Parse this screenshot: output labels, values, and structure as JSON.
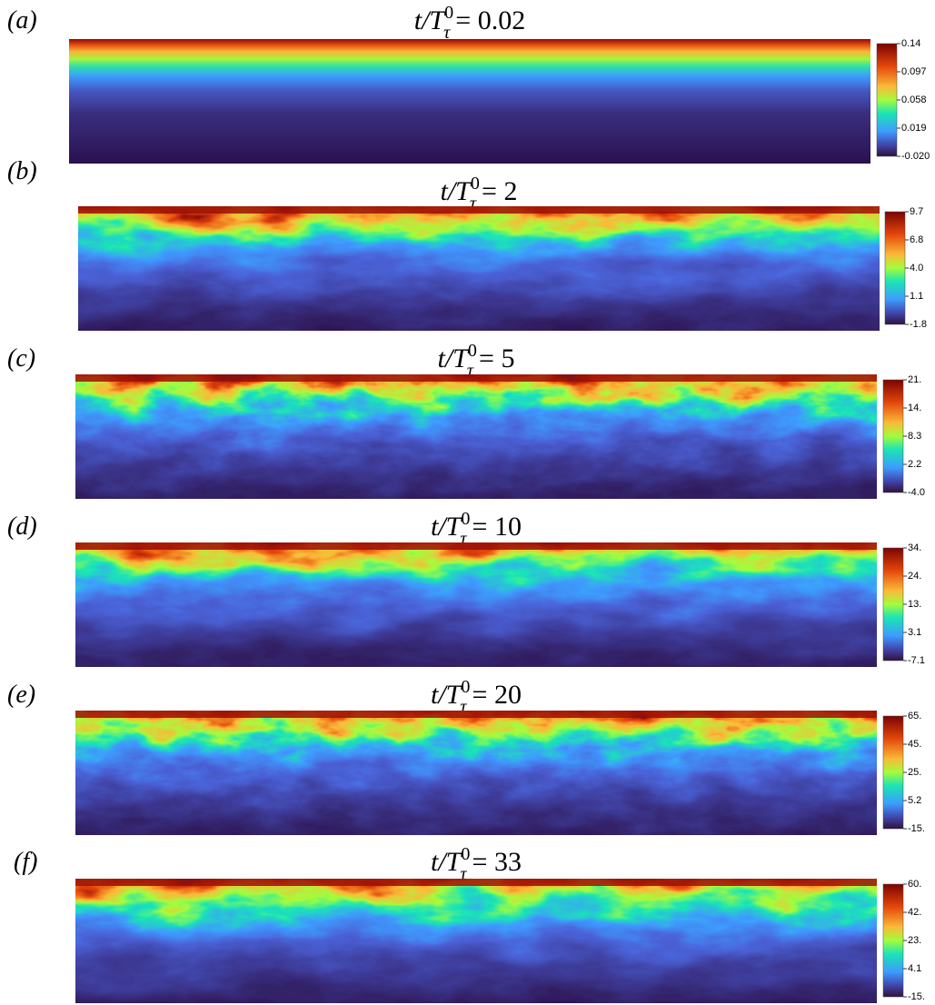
{
  "panels": [
    {
      "label": "(a)",
      "title": {
        "lhs": "t/T",
        "sup": "0",
        "sub": "τ",
        "rhs": "= 0.02"
      },
      "colorbar_ticks": [
        "0.14",
        "0.097",
        "0.058",
        "0.019",
        "-0.020"
      ]
    },
    {
      "label": "(b)",
      "title": {
        "lhs": "t/T",
        "sup": "0",
        "sub": "τ",
        "rhs": "= 2"
      },
      "colorbar_ticks": [
        "9.7",
        "6.8",
        "4.0",
        "1.1",
        "-1.8"
      ]
    },
    {
      "label": "(c)",
      "title": {
        "lhs": "t/T",
        "sup": "0",
        "sub": "τ",
        "rhs": "= 5"
      },
      "colorbar_ticks": [
        "21.",
        "14.",
        "8.3",
        "2.2",
        "-4.0"
      ]
    },
    {
      "label": "(d)",
      "title": {
        "lhs": "t/T",
        "sup": "0",
        "sub": "τ",
        "rhs": "= 10"
      },
      "colorbar_ticks": [
        "34.",
        "24.",
        "13.",
        "3.1",
        "-7.1"
      ]
    },
    {
      "label": "(e)",
      "title": {
        "lhs": "t/T",
        "sup": "0",
        "sub": "τ",
        "rhs": "= 20"
      },
      "colorbar_ticks": [
        "65.",
        "45.",
        "25.",
        "5.2",
        "-15."
      ]
    },
    {
      "label": "(f)",
      "title": {
        "lhs": "t/T",
        "sup": "0",
        "sub": "τ",
        "rhs": "= 33"
      },
      "colorbar_ticks": [
        "60.",
        "42.",
        "23.",
        "4.1",
        "-15."
      ]
    }
  ]
}
